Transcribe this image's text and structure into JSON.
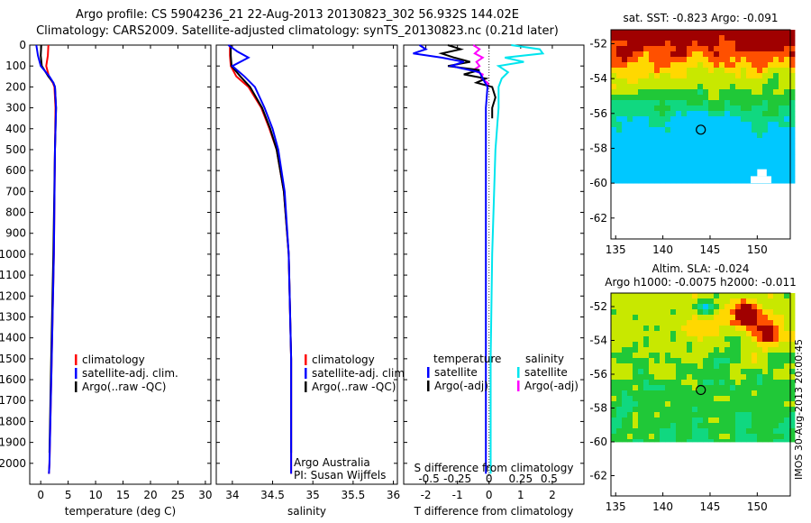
{
  "title_line1": "Argo profile: CS 5904236_21 22-Aug-2013 20130823_302 56.932S 144.02E",
  "title_line2": "Climatology: CARS2009. Satellite-adjusted climatology: synTS_20130823.nc (0.21d later)",
  "colors": {
    "climatology": "#ff0000",
    "satellite": "#0000ff",
    "argo": "#000000",
    "salinity_satellite": "#00e5ee",
    "salinity_argo": "#ff00ff"
  },
  "chart_data": [
    {
      "type": "line",
      "xlabel": "temperature (deg C)",
      "ylim": [
        2100,
        0
      ],
      "y_ticks": [
        0,
        100,
        200,
        300,
        400,
        500,
        600,
        700,
        800,
        900,
        1000,
        1100,
        1200,
        1300,
        1400,
        1500,
        1600,
        1700,
        1800,
        1900,
        2000
      ],
      "x_ticks": [
        0,
        5,
        10,
        15,
        20,
        25,
        30
      ],
      "xlim": [
        -2,
        31
      ],
      "legend": [
        "climatology",
        "satellite-adj. clim.",
        "Argo(..raw -QC)"
      ],
      "series": [
        {
          "name": "climatology",
          "depth": [
            0,
            50,
            100,
            150,
            180,
            200,
            300,
            500,
            1000,
            1500,
            2000,
            2050
          ],
          "values": [
            1.4,
            1.3,
            1.0,
            1.5,
            2.2,
            2.5,
            2.7,
            2.6,
            2.4,
            2.0,
            1.6,
            1.5
          ]
        },
        {
          "name": "satellite-adj. clim.",
          "depth": [
            0,
            50,
            100,
            150,
            180,
            200,
            300,
            500,
            1000,
            1500,
            2000,
            2050
          ],
          "values": [
            -0.8,
            -0.5,
            0.0,
            1.6,
            2.3,
            2.6,
            2.8,
            2.6,
            2.4,
            2.0,
            1.6,
            1.5
          ]
        },
        {
          "name": "Argo(..raw -QC)",
          "depth": [
            0,
            50,
            100,
            150,
            180,
            200,
            300,
            500,
            1000,
            1500,
            1950
          ],
          "values": [
            0.1,
            0.0,
            0.2,
            1.4,
            2.3,
            2.6,
            2.8,
            2.6,
            2.3,
            1.9,
            1.6
          ]
        }
      ]
    },
    {
      "type": "line",
      "xlabel": "salinity",
      "ylim": [
        2100,
        0
      ],
      "x_ticks": [
        34,
        34.5,
        35,
        35.5,
        36
      ],
      "xlim": [
        33.8,
        36.05
      ],
      "legend": [
        "climatology",
        "satellite-adj. clim.",
        "Argo(..raw -QC)"
      ],
      "annotation": [
        "Argo Australia",
        "PI: Susan Wijffels"
      ],
      "series": [
        {
          "name": "climatology",
          "depth": [
            0,
            50,
            100,
            150,
            200,
            300,
            400,
            500,
            700,
            1000,
            1500,
            2050
          ],
          "values": [
            33.97,
            33.97,
            33.98,
            34.05,
            34.2,
            34.36,
            34.46,
            34.55,
            34.64,
            34.7,
            34.73,
            34.73
          ]
        },
        {
          "name": "satellite-adj. clim.",
          "depth": [
            0,
            30,
            60,
            100,
            150,
            200,
            300,
            400,
            500,
            700,
            1000,
            1500,
            2050
          ],
          "values": [
            33.95,
            34.06,
            34.2,
            34.0,
            34.15,
            34.28,
            34.4,
            34.5,
            34.57,
            34.65,
            34.7,
            34.73,
            34.73
          ]
        },
        {
          "name": "Argo(..raw -QC)",
          "depth": [
            0,
            50,
            100,
            150,
            200,
            300,
            400,
            500,
            700,
            1000,
            1500,
            1950
          ],
          "values": [
            33.98,
            33.98,
            33.99,
            34.1,
            34.22,
            34.37,
            34.47,
            34.55,
            34.64,
            34.7,
            34.73,
            34.73
          ]
        }
      ]
    },
    {
      "type": "line",
      "xlabel": "T difference from climatology",
      "xlabel_top": "S difference from climatology",
      "ylim": [
        2100,
        0
      ],
      "x_ticks": [
        -2,
        -1,
        0,
        1,
        2
      ],
      "s_ticks": [
        "-0.5",
        "-0.25",
        "0",
        "0.25",
        "0.5"
      ],
      "xlim": [
        -2.7,
        3.0
      ],
      "legend_temperature": [
        "temperature",
        "satellite",
        "Argo(-adj)"
      ],
      "legend_salinity": [
        "salinity",
        "satellite",
        "Argo(-adj)"
      ],
      "series": [
        {
          "name": "temperature satellite",
          "depth": [
            0,
            20,
            40,
            60,
            80,
            100,
            130,
            160,
            200,
            300,
            500,
            1000,
            1500,
            2050
          ],
          "values": [
            -2.2,
            -2.0,
            -2.4,
            -1.5,
            -0.8,
            -1.2,
            -0.3,
            -0.2,
            -0.05,
            -0.1,
            -0.1,
            -0.1,
            -0.1,
            -0.1
          ]
        },
        {
          "name": "temperature Argo(-adj)",
          "depth": [
            0,
            20,
            40,
            60,
            80,
            100,
            120,
            140,
            160,
            180,
            200,
            250,
            300,
            350
          ],
          "values": [
            -1.3,
            -0.9,
            -1.5,
            -1.1,
            -0.6,
            -1.3,
            -0.3,
            -0.8,
            -0.1,
            -0.4,
            0.1,
            0.2,
            0.1,
            0.1
          ]
        },
        {
          "name": "salinity satellite",
          "depth": [
            0,
            20,
            40,
            60,
            80,
            100,
            130,
            160,
            200,
            300,
            500,
            1000,
            1500,
            2050
          ],
          "values": [
            0.7,
            1.6,
            1.7,
            0.5,
            1.1,
            0.3,
            0.6,
            0.4,
            0.3,
            0.3,
            0.2,
            0.1,
            0.05,
            0.05
          ]
        },
        {
          "name": "salinity Argo(-adj)",
          "depth": [
            0,
            20,
            40,
            60,
            80,
            100,
            120,
            140,
            160,
            180,
            200
          ],
          "values": [
            -0.5,
            -0.3,
            -0.45,
            -0.2,
            -0.4,
            -0.3,
            -0.5,
            -0.2,
            -0.25,
            -0.05,
            0.0
          ]
        }
      ]
    },
    {
      "type": "heatmap",
      "title": "sat. SST: -0.823 Argo: -0.091",
      "x_ticks": [
        135,
        140,
        145,
        150
      ],
      "y_ticks": [
        -52,
        -54,
        -56,
        -58,
        -60,
        -62
      ],
      "xlim": [
        134.5,
        153.5
      ],
      "ylim": [
        -63.2,
        -51.2
      ],
      "marker": [
        144.02,
        -56.932
      ]
    },
    {
      "type": "heatmap",
      "title_line1": "Altim. SLA: -0.024",
      "title_line2": "Argo h1000: -0.0075 h2000: -0.011",
      "x_ticks": [
        135,
        140,
        145,
        150
      ],
      "y_ticks": [
        -52,
        -54,
        -56,
        -58,
        -60,
        -62
      ],
      "xlim": [
        134.5,
        153.5
      ],
      "ylim": [
        -63.2,
        -51.2
      ],
      "marker": [
        144.02,
        -56.932
      ]
    }
  ],
  "watermark": "IMOS 30-Aug-2013 20:00:45"
}
